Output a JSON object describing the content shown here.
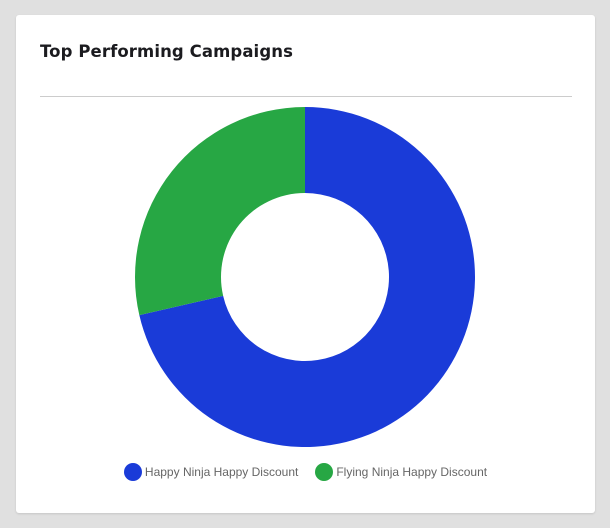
{
  "card": {
    "title": "Top Performing Campaigns"
  },
  "colors": {
    "series_1": "#1a3bd8",
    "series_2": "#27a744",
    "background": "#e0e0e0",
    "card": "#ffffff",
    "divider": "#cccccc"
  },
  "legend": {
    "items": [
      {
        "label": "Happy Ninja Happy Discount",
        "color": "#1a3bd8"
      },
      {
        "label": "Flying Ninja Happy Discount",
        "color": "#27a744"
      }
    ]
  },
  "chart_data": {
    "type": "pie",
    "subtype": "doughnut",
    "title": "Top Performing Campaigns",
    "categories": [
      "Happy Ninja Happy Discount",
      "Flying Ninja Happy Discount"
    ],
    "values": [
      71.4,
      28.6
    ],
    "colors": [
      "#1a3bd8",
      "#27a744"
    ],
    "legend_position": "bottom",
    "start_angle_deg": 0,
    "direction": "clockwise",
    "inner_radius_ratio": 0.5
  }
}
